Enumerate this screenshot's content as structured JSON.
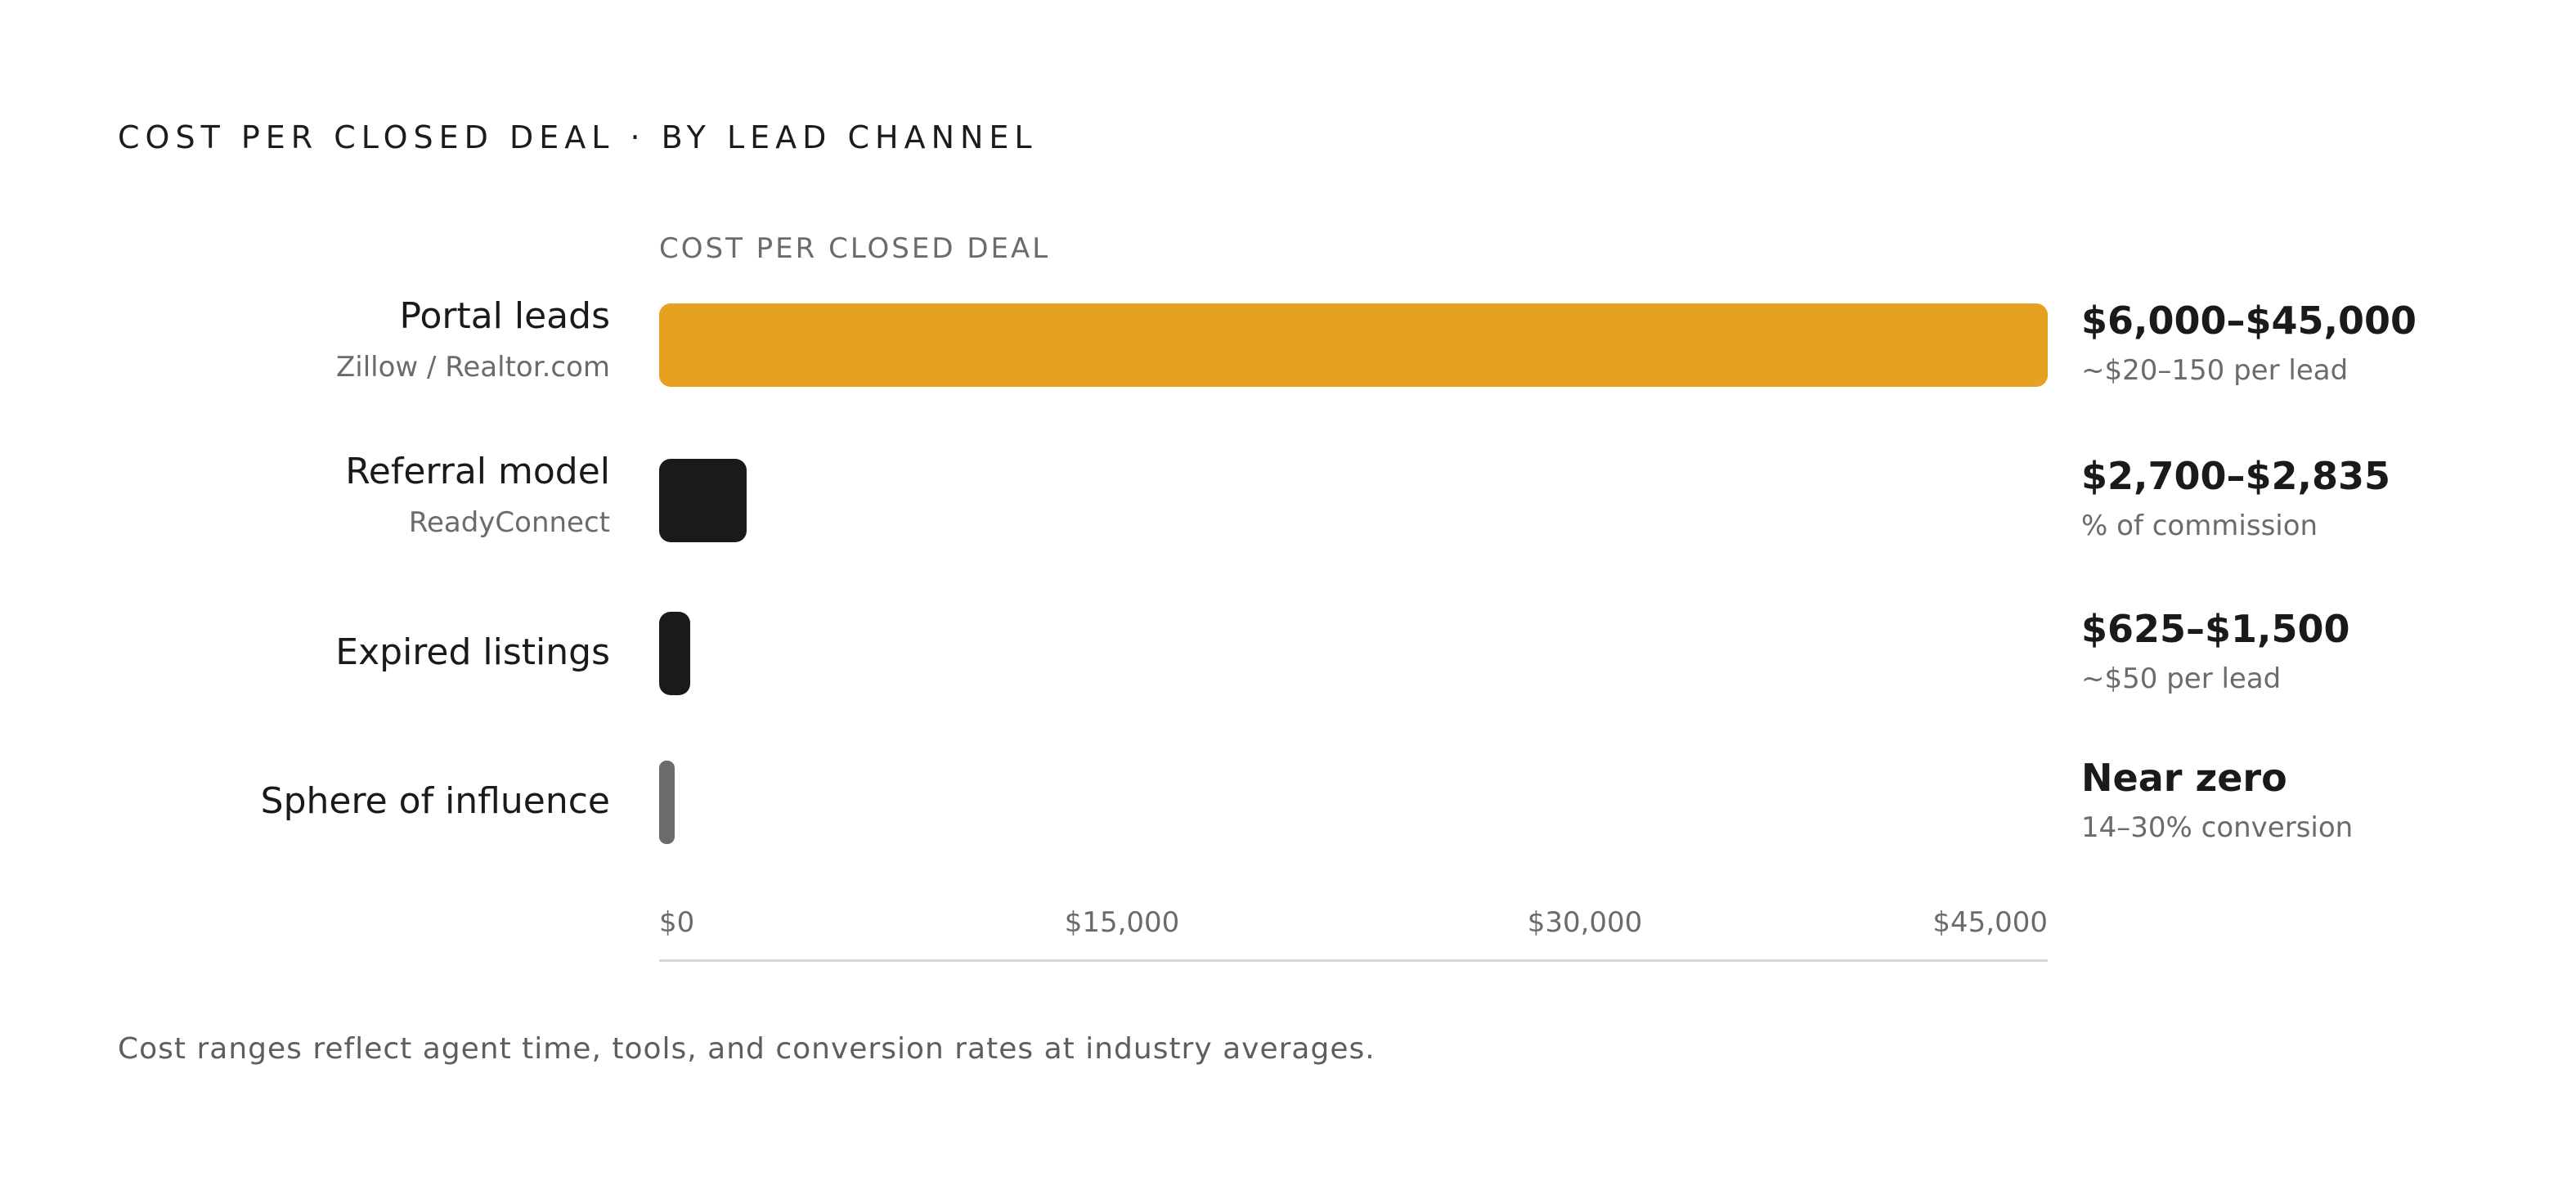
{
  "title": "COST PER CLOSED DEAL · BY LEAD CHANNEL",
  "footnote": "Cost ranges reflect agent time, tools, and conversion rates at industry averages.",
  "colors": {
    "highlight": "#E6A122",
    "dark": "#1A1A1A",
    "muted": "#6B6B6B",
    "axis": "#D6D6D6"
  },
  "chart_data": {
    "type": "bar",
    "orientation": "horizontal",
    "axis_caption": "COST PER CLOSED DEAL",
    "xlim": [
      0,
      45000
    ],
    "ticks": [
      0,
      15000,
      30000,
      45000
    ],
    "tick_labels": [
      "$0",
      "$15,000",
      "$30,000",
      "$45,000"
    ],
    "categories": [
      {
        "name": "Portal leads",
        "sub": "Zillow / Realtor.com",
        "value_label": "$6,000–$45,000",
        "value_sub": "~$20–150 per lead",
        "value": 45000,
        "color": "#E6A122"
      },
      {
        "name": "Referral model",
        "sub": "ReadyConnect",
        "value_label": "$2,700–$2,835",
        "value_sub": "% of commission",
        "value": 2835,
        "color": "#1A1A1A"
      },
      {
        "name": "Expired listings",
        "sub": "",
        "value_label": "$625–$1,500",
        "value_sub": "~$50 per lead",
        "value": 1000,
        "color": "#1A1A1A"
      },
      {
        "name": "Sphere of influence",
        "sub": "",
        "value_label": "Near zero",
        "value_sub": "14–30% conversion",
        "value": 500,
        "color": "#6B6B6B"
      }
    ]
  }
}
